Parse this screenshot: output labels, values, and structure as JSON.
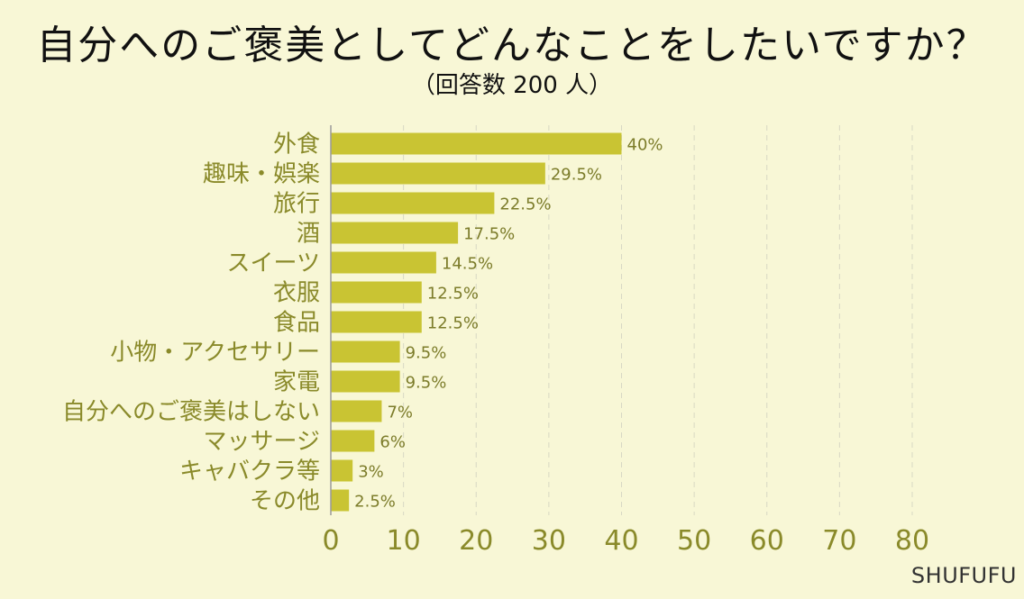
{
  "chart_data": {
    "type": "bar",
    "orientation": "horizontal",
    "title": "自分へのご褒美としてどんなことをしたいですか？",
    "subtitle": "（回答数 200 人）",
    "categories": [
      "外食",
      "趣味・娯楽",
      "旅行",
      "酒",
      "スイーツ",
      "衣服",
      "食品",
      "小物・アクセサリー",
      "家電",
      "自分へのご褒美はしない",
      "マッサージ",
      "キャバクラ等",
      "その他"
    ],
    "values": [
      40,
      29.5,
      22.5,
      17.5,
      14.5,
      12.5,
      12.5,
      9.5,
      9.5,
      7,
      6,
      3,
      2.5
    ],
    "value_labels": [
      "40%",
      "29.5%",
      "22.5%",
      "17.5%",
      "14.5%",
      "12.5%",
      "12.5%",
      "9.5%",
      "9.5%",
      "7%",
      "6%",
      "3%",
      "2.5%"
    ],
    "xlim": [
      0,
      80
    ],
    "xticks": [
      "0",
      "10",
      "20",
      "30",
      "40",
      "50",
      "60",
      "70",
      "80"
    ],
    "grid": true,
    "bar_color": "#c9c433",
    "label_color": "#8a8a2a"
  },
  "credit": "SHUFUFU"
}
